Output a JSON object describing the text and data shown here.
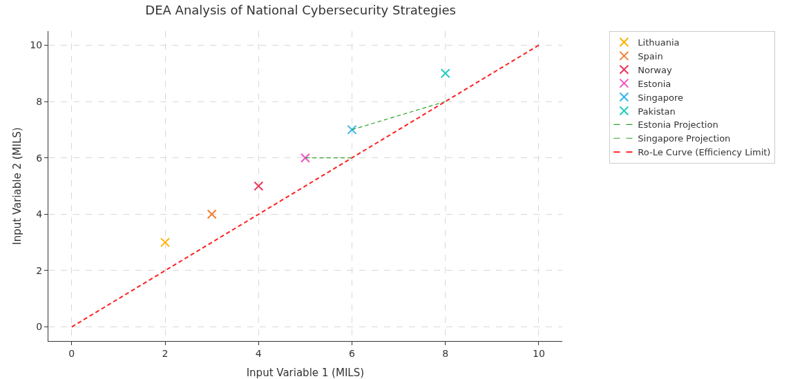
{
  "chart_data": {
    "type": "scatter",
    "title": "DEA Analysis of National Cybersecurity Strategies",
    "xlabel": "Input Variable 1 (MILS)",
    "ylabel": "Input Variable 2 (MILS)",
    "xlim": [
      -0.5,
      10.5
    ],
    "ylim": [
      -0.5,
      10.5
    ],
    "xticks": [
      0,
      2,
      4,
      6,
      8,
      10
    ],
    "yticks": [
      0,
      2,
      4,
      6,
      8,
      10
    ],
    "grid": true,
    "legend": "top right",
    "marker": "cross",
    "series": [
      {
        "name": "Lithuania",
        "color": "#ffb000",
        "x": [
          2
        ],
        "values": [
          3
        ]
      },
      {
        "name": "Spain",
        "color": "#f57c2c",
        "x": [
          3
        ],
        "values": [
          4
        ]
      },
      {
        "name": "Norway",
        "color": "#e8375a",
        "x": [
          4
        ],
        "values": [
          5
        ]
      },
      {
        "name": "Estonia",
        "color": "#f050c8",
        "x": [
          5
        ],
        "values": [
          6
        ]
      },
      {
        "name": "Singapore",
        "color": "#30b4f0",
        "x": [
          6
        ],
        "values": [
          7
        ]
      },
      {
        "name": "Pakistan",
        "color": "#20cdbf",
        "x": [
          8
        ],
        "values": [
          9
        ]
      },
      {
        "name": "Estonia Projection",
        "type": "line",
        "marker": "none",
        "line_style": "dashed",
        "color": "#2ca02c",
        "x": [
          5,
          6
        ],
        "values": [
          6,
          6
        ]
      },
      {
        "name": "Singapore Projection",
        "type": "line",
        "marker": "none",
        "line_style": "dashed",
        "color": "#2ca02c",
        "x": [
          6,
          8
        ],
        "values": [
          7,
          8
        ]
      },
      {
        "name": "Ro-Le Curve (Efficiency Limit)",
        "type": "line",
        "marker": "none",
        "line_style": "dashed",
        "color": "#ff2020",
        "x": [
          0,
          10
        ],
        "values": [
          0,
          10
        ]
      }
    ]
  }
}
